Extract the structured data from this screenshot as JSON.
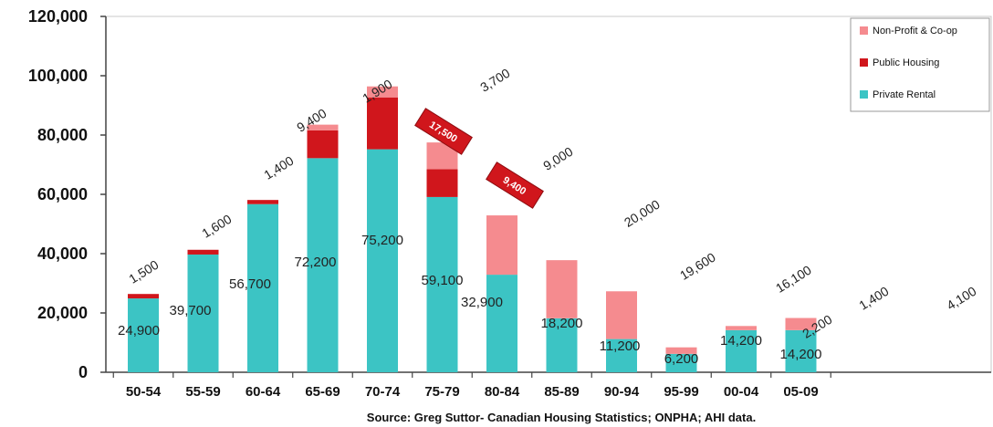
{
  "chart_data": {
    "type": "bar",
    "stacked": true,
    "categories": [
      "50-54",
      "55-59",
      "60-64",
      "65-69",
      "70-74",
      "75-79",
      "80-84",
      "85-89",
      "90-94",
      "95-99",
      "00-04",
      "05-09"
    ],
    "series": [
      {
        "name": "Private Rental",
        "color": "#3cc4c4",
        "values": [
          24900,
          39700,
          56700,
          72200,
          75200,
          59100,
          32900,
          18200,
          11200,
          6200,
          14200,
          14200
        ]
      },
      {
        "name": "Public Housing",
        "color": "#d0161c",
        "values": [
          1500,
          1600,
          1400,
          9400,
          17500,
          9400,
          0,
          0,
          0,
          0,
          0,
          0
        ]
      },
      {
        "name": "Non-Profit & Co-op",
        "color": "#f58b8f",
        "values": [
          0,
          0,
          0,
          1900,
          3700,
          9000,
          20000,
          19600,
          16100,
          2200,
          1400,
          4100
        ]
      }
    ],
    "bar_labels": {
      "private": [
        "24,900",
        "39,700",
        "56,700",
        "72,200",
        "75,200",
        "59,100",
        "32,900",
        "18,200",
        "11,200",
        "6,200",
        "14,200",
        "14,200"
      ],
      "public": [
        "1,500",
        "1,600",
        "1,400",
        "9,400",
        "17,500",
        "9,400",
        "",
        "",
        "",
        "",
        "",
        ""
      ],
      "nonprofit": [
        "",
        "",
        "",
        "1,900",
        "3,700",
        "9,000",
        "20,000",
        "19,600",
        "16,100",
        "2,200",
        "1,400",
        "4,100"
      ]
    },
    "yticks": [
      "0",
      "20,000",
      "40,000",
      "60,000",
      "80,000",
      "100,000",
      "120,000"
    ],
    "ylim": [
      0,
      120000
    ],
    "grid": false,
    "legend_position": "top-right",
    "legend": [
      "Non-Profit & Co-op",
      "Public Housing",
      "Private Rental"
    ],
    "source": "Source: Greg Suttor- Canadian Housing Statistics; ONPHA; AHI data."
  }
}
